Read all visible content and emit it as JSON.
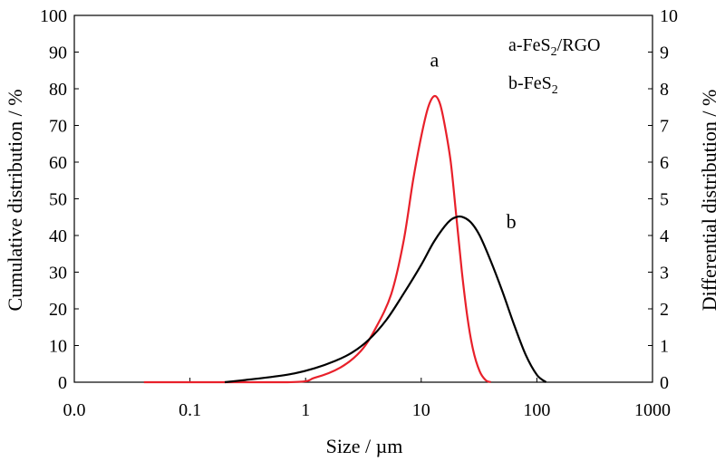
{
  "chart_data": {
    "type": "line",
    "xlabel": "Size / µm",
    "ylabel_left": "Cumulative distribution / %",
    "ylabel_right": "Differential distribution / %",
    "x_scale": "log",
    "x_ticks": [
      {
        "value": 0.01,
        "label": "0.0"
      },
      {
        "value": 0.1,
        "label": "0.1"
      },
      {
        "value": 1,
        "label": "1"
      },
      {
        "value": 10,
        "label": "10"
      },
      {
        "value": 100,
        "label": "100"
      },
      {
        "value": 1000,
        "label": "1000"
      }
    ],
    "xlim": [
      0.01,
      1000
    ],
    "ylim_left": [
      0,
      100
    ],
    "ylim_right": [
      0,
      10
    ],
    "y_ticks_left": [
      "0",
      "10",
      "20",
      "30",
      "40",
      "50",
      "60",
      "70",
      "80",
      "90",
      "100"
    ],
    "y_ticks_right": [
      "0",
      "1",
      "2",
      "3",
      "4",
      "5",
      "6",
      "7",
      "8",
      "9",
      "10"
    ],
    "grid": false,
    "legend": {
      "position": "top-right",
      "entries": [
        {
          "prefix": "a-FeS",
          "sub": "2",
          "suffix": "/RGO"
        },
        {
          "prefix": "b-FeS",
          "sub": "2",
          "suffix": ""
        }
      ]
    },
    "series": [
      {
        "label": "a",
        "color": "#e8202a",
        "axis": "right",
        "points": [
          [
            0.04,
            0
          ],
          [
            0.7,
            0
          ],
          [
            1.2,
            0.12
          ],
          [
            2,
            0.4
          ],
          [
            3,
            0.85
          ],
          [
            4,
            1.45
          ],
          [
            5.5,
            2.4
          ],
          [
            7,
            3.8
          ],
          [
            8.5,
            5.5
          ],
          [
            10,
            6.7
          ],
          [
            11.5,
            7.5
          ],
          [
            13,
            7.8
          ],
          [
            14.5,
            7.6
          ],
          [
            16,
            7.0
          ],
          [
            18,
            6.0
          ],
          [
            20,
            4.6
          ],
          [
            22.5,
            3.0
          ],
          [
            25,
            1.8
          ],
          [
            28,
            0.9
          ],
          [
            32,
            0.3
          ],
          [
            36,
            0.06
          ],
          [
            40,
            0
          ]
        ]
      },
      {
        "label": "b",
        "color": "#000000",
        "axis": "right",
        "points": [
          [
            0.2,
            0
          ],
          [
            0.3,
            0.06
          ],
          [
            0.5,
            0.14
          ],
          [
            0.8,
            0.24
          ],
          [
            1.2,
            0.38
          ],
          [
            1.8,
            0.58
          ],
          [
            2.5,
            0.8
          ],
          [
            3.5,
            1.15
          ],
          [
            5,
            1.7
          ],
          [
            7,
            2.4
          ],
          [
            10,
            3.2
          ],
          [
            13,
            3.85
          ],
          [
            17,
            4.35
          ],
          [
            20,
            4.5
          ],
          [
            23,
            4.5
          ],
          [
            27,
            4.35
          ],
          [
            32,
            4.0
          ],
          [
            40,
            3.3
          ],
          [
            50,
            2.5
          ],
          [
            63,
            1.6
          ],
          [
            80,
            0.75
          ],
          [
            100,
            0.2
          ],
          [
            120,
            0
          ]
        ]
      }
    ],
    "curve_labels": [
      {
        "text": "a",
        "x": 13,
        "y": 8.6
      },
      {
        "text": "b",
        "x": 60,
        "y": 4.2
      }
    ]
  }
}
